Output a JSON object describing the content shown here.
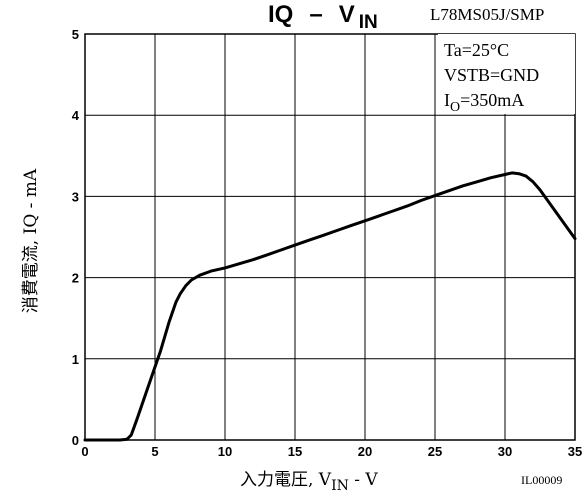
{
  "chart_data": {
    "type": "line",
    "title": "IQ – VIN",
    "title_parts": {
      "main": "IQ",
      "dash": "–",
      "v": "V",
      "sub": "IN"
    },
    "part_number": "L78MS05J/SMP",
    "conditions": [
      {
        "main": "Ta=25°C",
        "sub": "",
        "rest": ""
      },
      {
        "main": "VSTB=GND",
        "sub": "",
        "rest": ""
      },
      {
        "main": "I",
        "sub": "O",
        "rest": "=350mA"
      }
    ],
    "ylabel": "消費電流, IQ - mA",
    "xlabel_parts": {
      "pre": "入力電圧, V",
      "sub": "IN",
      "post": " - V"
    },
    "figure_code": "IL00009",
    "xlim": [
      0,
      35
    ],
    "ylim": [
      0,
      5
    ],
    "x_ticks": [
      "0",
      "5",
      "10",
      "15",
      "20",
      "25",
      "30",
      "35"
    ],
    "y_ticks": [
      "0",
      "1",
      "2",
      "3",
      "4",
      "5"
    ],
    "grid": true,
    "series": [
      {
        "x": [
          0,
          2.5,
          3.0,
          3.3,
          3.7,
          4.2,
          4.8,
          5.4,
          6.0,
          6.5,
          6.8,
          7.2,
          7.6,
          8.2,
          9.0,
          10,
          11,
          12,
          13,
          14,
          15,
          16,
          17,
          18,
          19,
          20,
          21,
          22,
          23,
          24,
          25,
          26,
          27,
          28,
          29,
          30,
          30.5,
          31,
          31.5,
          32,
          32.5,
          33,
          33.5,
          34,
          34.5,
          35
        ],
        "y": [
          0,
          0,
          0.01,
          0.06,
          0.25,
          0.5,
          0.8,
          1.1,
          1.45,
          1.7,
          1.8,
          1.9,
          1.97,
          2.03,
          2.08,
          2.12,
          2.17,
          2.22,
          2.28,
          2.34,
          2.4,
          2.46,
          2.52,
          2.58,
          2.64,
          2.7,
          2.76,
          2.82,
          2.88,
          2.95,
          3.01,
          3.07,
          3.13,
          3.18,
          3.23,
          3.27,
          3.29,
          3.28,
          3.25,
          3.18,
          3.08,
          2.96,
          2.84,
          2.72,
          2.6,
          2.48
        ]
      }
    ]
  }
}
